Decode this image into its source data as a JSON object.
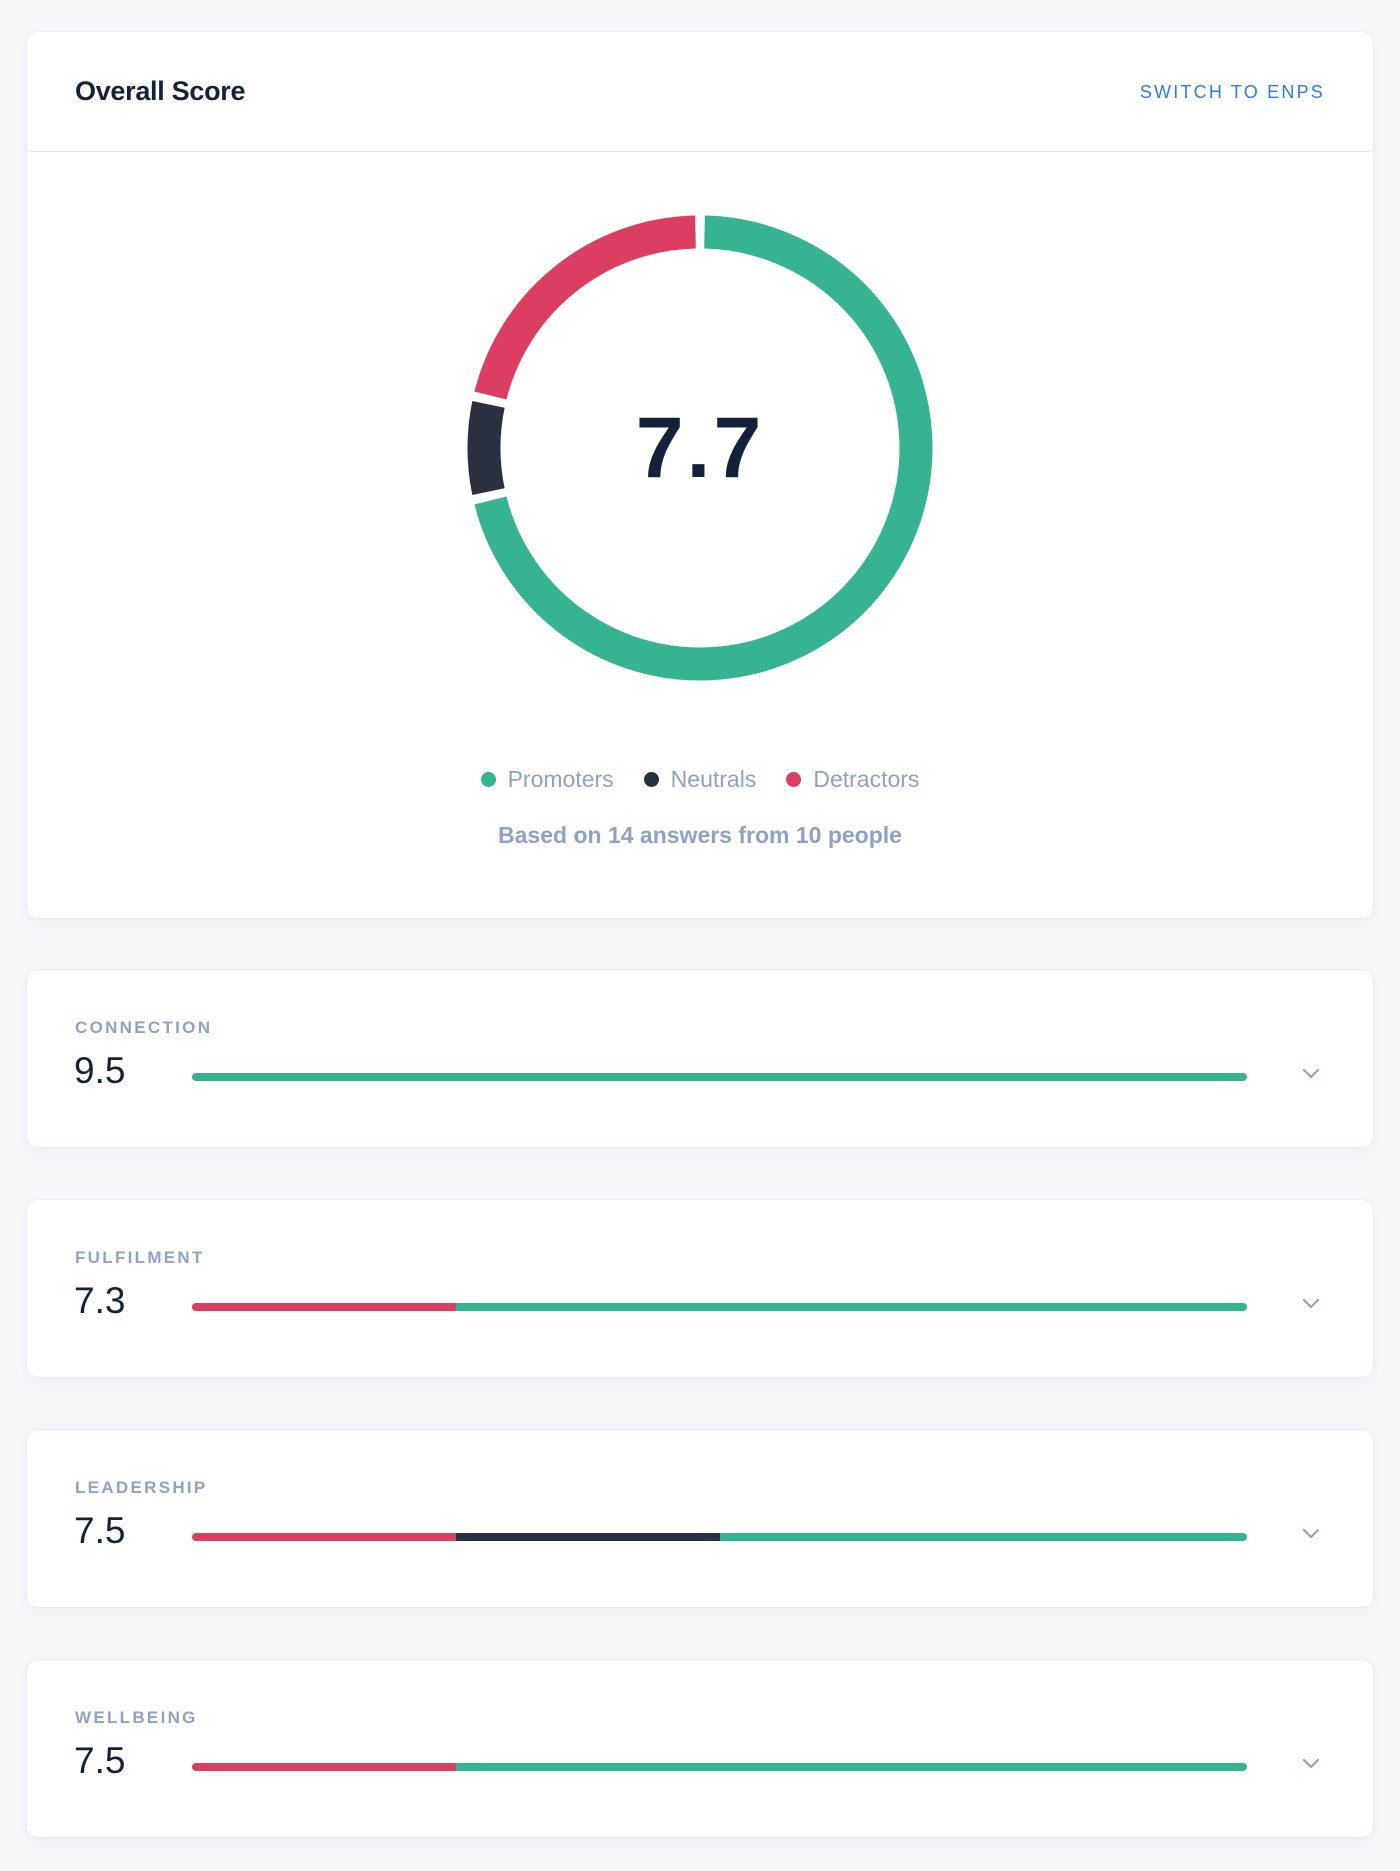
{
  "overall": {
    "title": "Overall Score",
    "switch_label": "SWITCH TO ENPS",
    "score": "7.7",
    "legend": [
      "Promoters",
      "Neutrals",
      "Detractors"
    ],
    "basis": "Based on 14 answers from 10 people",
    "breakdown": {
      "promoters": 10,
      "neutrals": 1,
      "detractors": 3
    }
  },
  "colors": {
    "promoters": "#36b393",
    "neutrals": "#2a303d",
    "detractors": "#dc3e62",
    "link": "#2f7ae5"
  },
  "categories": [
    {
      "label": "CONNECTION",
      "value": "9.5",
      "detractors": 0,
      "neutrals": 0,
      "promoters": 1,
      "icon": "chevron-down-icon"
    },
    {
      "label": "FULFILMENT",
      "value": "7.3",
      "detractors": 0.25,
      "neutrals": 0,
      "promoters": 0.75,
      "icon": "chevron-down-icon"
    },
    {
      "label": "LEADERSHIP",
      "value": "7.5",
      "detractors": 0.25,
      "neutrals": 0.25,
      "promoters": 0.5,
      "icon": "chevron-down-icon"
    },
    {
      "label": "WELLBEING",
      "value": "7.5",
      "detractors": 0.25,
      "neutrals": 0,
      "promoters": 0.75,
      "icon": "chevron-down-icon"
    }
  ]
}
